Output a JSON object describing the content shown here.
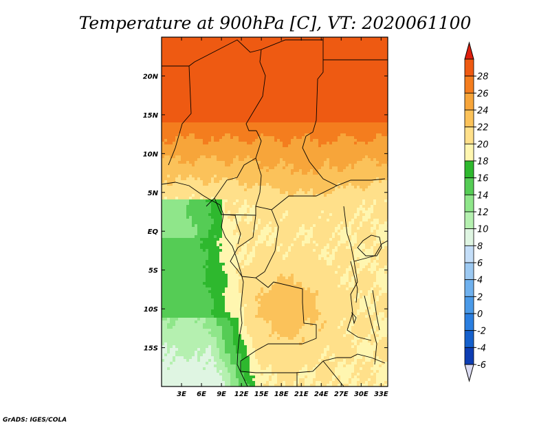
{
  "chart_data": {
    "type": "heatmap",
    "title": "Temperature at 900hPa [C], VT: 2020061100",
    "xlabel": "",
    "ylabel": "",
    "x_ticks": [
      "3E",
      "6E",
      "9E",
      "12E",
      "15E",
      "18E",
      "21E",
      "24E",
      "27E",
      "30E",
      "33E"
    ],
    "y_ticks": [
      "20N",
      "15N",
      "10N",
      "5N",
      "EQ",
      "5S",
      "10S",
      "15S"
    ],
    "lon_range": [
      0,
      34
    ],
    "lat_range": [
      -20,
      25
    ],
    "colorbar": {
      "levels": [
        "-6",
        "-4",
        "-2",
        "0",
        "2",
        "4",
        "6",
        "8",
        "10",
        "12",
        "14",
        "16",
        "18",
        "20",
        "22",
        "24",
        "26",
        "28"
      ],
      "colors": [
        "#0c1a7a",
        "#0d3db3",
        "#1560cc",
        "#2a7ee0",
        "#4a9ae8",
        "#6fb1ee",
        "#9cc9f2",
        "#c4def8",
        "#dff5e2",
        "#b5f0b0",
        "#8fe68a",
        "#55cc55",
        "#2eb82e",
        "#fff6b0",
        "#ffe08a",
        "#fbc25a",
        "#f7a53a",
        "#f47d1e",
        "#ee5a12",
        "#de1f0e"
      ],
      "under_color": "#dcdcf2",
      "over_color": "#de1f0e"
    },
    "fields": [
      {
        "level": "above 28",
        "region": "north of about 14N"
      },
      {
        "level": "26-28",
        "region": "about 11N-14N"
      },
      {
        "level": "22-26",
        "region": "Central African interior, about 5N-11N and near 8S-12S"
      },
      {
        "level": "18-22",
        "region": "Congo Basin and most of the south"
      },
      {
        "level": "14-18",
        "region": "Atlantic coast, about 3S-12S"
      },
      {
        "level": "10-14",
        "region": "south-west Atlantic, about 12S-20S"
      }
    ]
  },
  "footer": {
    "credit": "GrADS: IGES/COLA"
  }
}
